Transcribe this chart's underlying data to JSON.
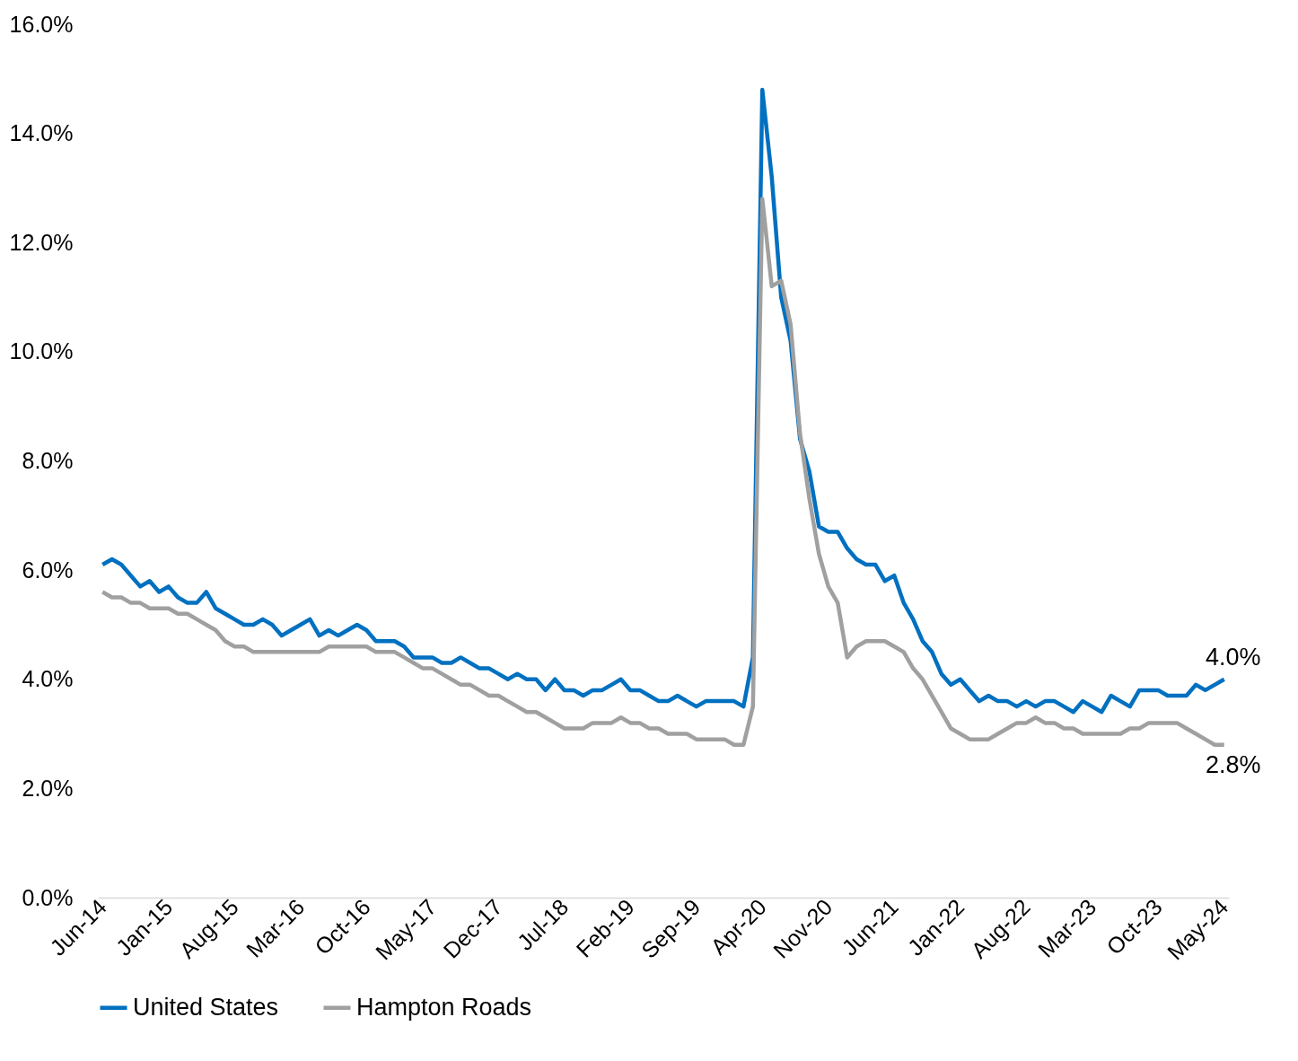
{
  "chart_data": {
    "type": "line",
    "categories": [
      "Jun-14",
      null,
      null,
      null,
      null,
      null,
      null,
      "Jan-15",
      null,
      null,
      null,
      null,
      null,
      null,
      "Aug-15",
      null,
      null,
      null,
      null,
      null,
      null,
      "Mar-16",
      null,
      null,
      null,
      null,
      null,
      null,
      "Oct-16",
      null,
      null,
      null,
      null,
      null,
      null,
      "May-17",
      null,
      null,
      null,
      null,
      null,
      null,
      "Dec-17",
      null,
      null,
      null,
      null,
      null,
      null,
      "Jul-18",
      null,
      null,
      null,
      null,
      null,
      null,
      "Feb-19",
      null,
      null,
      null,
      null,
      null,
      null,
      "Sep-19",
      null,
      null,
      null,
      null,
      null,
      null,
      "Apr-20",
      null,
      null,
      null,
      null,
      null,
      null,
      "Nov-20",
      null,
      null,
      null,
      null,
      null,
      null,
      "Jun-21",
      null,
      null,
      null,
      null,
      null,
      null,
      "Jan-22",
      null,
      null,
      null,
      null,
      null,
      null,
      "Aug-22",
      null,
      null,
      null,
      null,
      null,
      null,
      "Mar-23",
      null,
      null,
      null,
      null,
      null,
      null,
      "Oct-23",
      null,
      null,
      null,
      null,
      null,
      null,
      "May-24"
    ],
    "series": [
      {
        "name": "United States",
        "color": "#0070c0",
        "values": [
          6.1,
          6.2,
          6.1,
          5.9,
          5.7,
          5.8,
          5.6,
          5.7,
          5.5,
          5.4,
          5.4,
          5.6,
          5.3,
          5.2,
          5.1,
          5.0,
          5.0,
          5.1,
          5.0,
          4.8,
          4.9,
          5.0,
          5.1,
          4.8,
          4.9,
          4.8,
          4.9,
          5.0,
          4.9,
          4.7,
          4.7,
          4.7,
          4.6,
          4.4,
          4.4,
          4.4,
          4.3,
          4.3,
          4.4,
          4.3,
          4.2,
          4.2,
          4.1,
          4.0,
          4.1,
          4.0,
          4.0,
          3.8,
          4.0,
          3.8,
          3.8,
          3.7,
          3.8,
          3.8,
          3.9,
          4.0,
          3.8,
          3.8,
          3.7,
          3.6,
          3.6,
          3.7,
          3.6,
          3.5,
          3.6,
          3.6,
          3.6,
          3.6,
          3.5,
          4.4,
          14.8,
          13.2,
          11.0,
          10.2,
          8.4,
          7.8,
          6.8,
          6.7,
          6.7,
          6.4,
          6.2,
          6.1,
          6.1,
          5.8,
          5.9,
          5.4,
          5.1,
          4.7,
          4.5,
          4.1,
          3.9,
          4.0,
          3.8,
          3.6,
          3.7,
          3.6,
          3.6,
          3.5,
          3.6,
          3.5,
          3.6,
          3.6,
          3.5,
          3.4,
          3.6,
          3.5,
          3.4,
          3.7,
          3.6,
          3.5,
          3.8,
          3.8,
          3.8,
          3.7,
          3.7,
          3.7,
          3.9,
          3.8,
          3.9,
          4.0
        ]
      },
      {
        "name": "Hampton Roads",
        "color": "#a0a0a0",
        "values": [
          5.6,
          5.5,
          5.5,
          5.4,
          5.4,
          5.3,
          5.3,
          5.3,
          5.2,
          5.2,
          5.1,
          5.0,
          4.9,
          4.7,
          4.6,
          4.6,
          4.5,
          4.5,
          4.5,
          4.5,
          4.5,
          4.5,
          4.5,
          4.5,
          4.6,
          4.6,
          4.6,
          4.6,
          4.6,
          4.5,
          4.5,
          4.5,
          4.4,
          4.3,
          4.2,
          4.2,
          4.1,
          4.0,
          3.9,
          3.9,
          3.8,
          3.7,
          3.7,
          3.6,
          3.5,
          3.4,
          3.4,
          3.3,
          3.2,
          3.1,
          3.1,
          3.1,
          3.2,
          3.2,
          3.2,
          3.3,
          3.2,
          3.2,
          3.1,
          3.1,
          3.0,
          3.0,
          3.0,
          2.9,
          2.9,
          2.9,
          2.9,
          2.8,
          2.8,
          3.5,
          12.8,
          11.2,
          11.3,
          10.5,
          8.5,
          7.3,
          6.3,
          5.7,
          5.4,
          4.4,
          4.6,
          4.7,
          4.7,
          4.7,
          4.6,
          4.5,
          4.2,
          4.0,
          3.7,
          3.4,
          3.1,
          3.0,
          2.9,
          2.9,
          2.9,
          3.0,
          3.1,
          3.2,
          3.2,
          3.3,
          3.2,
          3.2,
          3.1,
          3.1,
          3.0,
          3.0,
          3.0,
          3.0,
          3.0,
          3.1,
          3.1,
          3.2,
          3.2,
          3.2,
          3.2,
          3.1,
          3.0,
          2.9,
          2.8,
          2.8
        ]
      }
    ],
    "ylim": [
      0,
      16
    ],
    "yticks": [
      {
        "value": 0,
        "label": "0.0%"
      },
      {
        "value": 2,
        "label": "2.0%"
      },
      {
        "value": 4,
        "label": "4.0%"
      },
      {
        "value": 6,
        "label": "6.0%"
      },
      {
        "value": 8,
        "label": "8.0%"
      },
      {
        "value": 10,
        "label": "10.0%"
      },
      {
        "value": 12,
        "label": "12.0%"
      },
      {
        "value": 14,
        "label": "14.0%"
      },
      {
        "value": 16,
        "label": "16.0%"
      }
    ],
    "annotations": [
      {
        "text": "4.0%",
        "x": "May-24",
        "y": 4.0
      },
      {
        "text": "2.8%",
        "x": "May-24",
        "y": 2.8
      }
    ],
    "grid": false,
    "legend": "bottom",
    "marker": "none",
    "line_style": "solid"
  }
}
